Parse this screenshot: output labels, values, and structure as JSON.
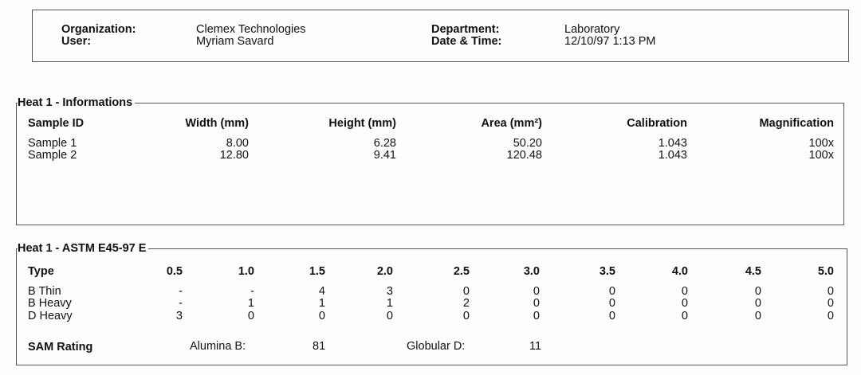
{
  "header": {
    "organization_label": "Organization:",
    "organization": "Clemex Technologies",
    "user_label": "User:",
    "user": "Myriam Savard",
    "department_label": "Department:",
    "department": "Laboratory",
    "datetime_label": "Date & Time:",
    "datetime": "12/10/97 1:13 PM"
  },
  "informations": {
    "title": "Heat 1 - Informations",
    "columns": [
      "Sample ID",
      "Width (mm)",
      "Height (mm)",
      "Area (mm²)",
      "Calibration",
      "Magnification"
    ],
    "rows": [
      [
        "Sample 1",
        "8.00",
        "6.28",
        "50.20",
        "1.043",
        "100x"
      ],
      [
        "Sample 2",
        "12.80",
        "9.41",
        "120.48",
        "1.043",
        "100x"
      ]
    ]
  },
  "astm": {
    "title": "Heat 1 - ASTM E45-97 E",
    "columns": [
      "Type",
      "0.5",
      "1.0",
      "1.5",
      "2.0",
      "2.5",
      "3.0",
      "3.5",
      "4.0",
      "4.5",
      "5.0"
    ],
    "rows": [
      [
        "B Thin",
        "-",
        "-",
        "4",
        "3",
        "0",
        "0",
        "0",
        "0",
        "0",
        "0"
      ],
      [
        "B Heavy",
        "-",
        "1",
        "1",
        "1",
        "2",
        "0",
        "0",
        "0",
        "0",
        "0"
      ],
      [
        "D Heavy",
        "3",
        "0",
        "0",
        "0",
        "0",
        "0",
        "0",
        "0",
        "0",
        "0"
      ]
    ],
    "sam": {
      "label": "SAM Rating",
      "alumina_label": "Alumina B:",
      "alumina": "81",
      "globular_label": "Globular D:",
      "globular": "11"
    }
  }
}
